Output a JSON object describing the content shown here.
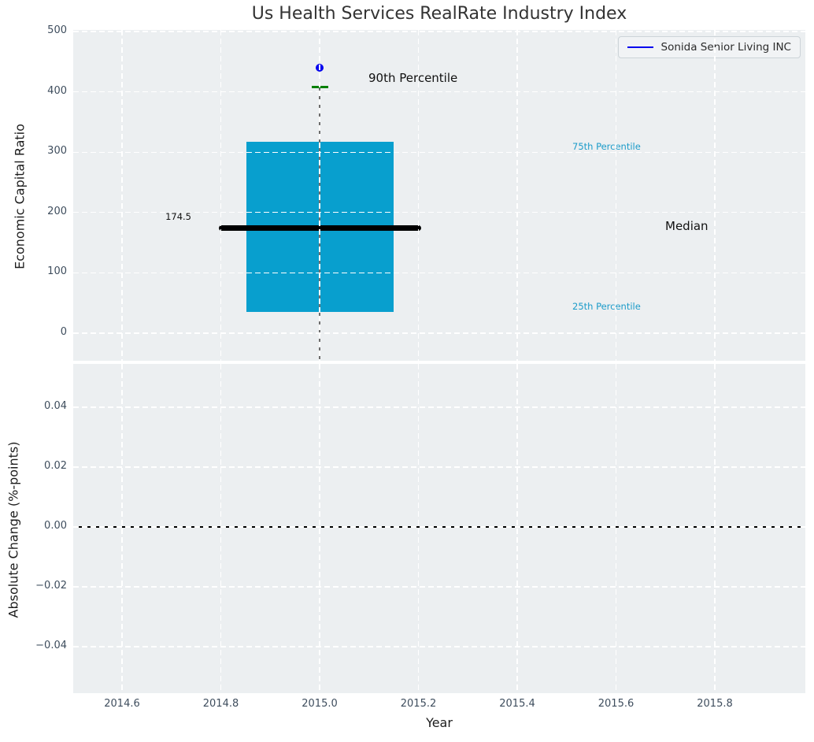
{
  "title": "Us Health Services RealRate Industry Index",
  "legend": {
    "label": "Sonida Senior Living INC"
  },
  "colors": {
    "axes_background": "#eceff1",
    "grid": "#ffffff",
    "box_fill": "#089fce",
    "median_line": "#000000",
    "whisker": "#6e6e6e",
    "percentile_cap": "#008000",
    "company_point": "#0000ee",
    "percentile_label_text": "#1b9bc9",
    "tick_label": "#3e4d5d",
    "zero_line": "#000000"
  },
  "chart_data": [
    {
      "type": "boxplot",
      "title": "Us Health Services RealRate Industry Index",
      "ylabel": "Economic Capital Ratio",
      "grid": true,
      "legend_position": "upper right",
      "ylim": [
        -46,
        503
      ],
      "xlim": [
        2014.5,
        2015.98
      ],
      "yticks": {
        "values": [
          0,
          100,
          200,
          300,
          400,
          500
        ],
        "labels": [
          "0",
          "100",
          "200",
          "300",
          "400",
          "500"
        ]
      },
      "box": {
        "x": 2015.0,
        "p90": 408,
        "p75": 317,
        "median": 174.5,
        "p25": 35,
        "lower_whisker_clipped_below_axis": true
      },
      "company_point": {
        "label": "Sonida Senior Living INC",
        "x": 2015.0,
        "y": 440
      },
      "annotations": {
        "p90_label": "90th Percentile",
        "p75_label": "75th Percentile",
        "median_label": "Median",
        "p25_label": "25th Percentile",
        "median_value_label": "174.5"
      }
    },
    {
      "type": "line",
      "ylabel": "Absolute Change (%-points)",
      "xlabel": "Year",
      "grid": true,
      "ylim": [
        -0.055,
        0.0545
      ],
      "xlim": [
        2014.5,
        2015.98
      ],
      "yticks": {
        "values": [
          0.04,
          0.02,
          0.0,
          -0.02,
          -0.04
        ],
        "labels": [
          "0.04",
          "0.02",
          "0.00",
          "−0.02",
          "−0.04"
        ]
      },
      "xticks": {
        "values": [
          2014.6,
          2014.8,
          2015.0,
          2015.2,
          2015.4,
          2015.6,
          2015.8
        ],
        "labels": [
          "2014.6",
          "2014.8",
          "2015.0",
          "2015.2",
          "2015.4",
          "2015.6",
          "2015.8"
        ]
      },
      "zero_line": 0.0,
      "series": []
    }
  ]
}
